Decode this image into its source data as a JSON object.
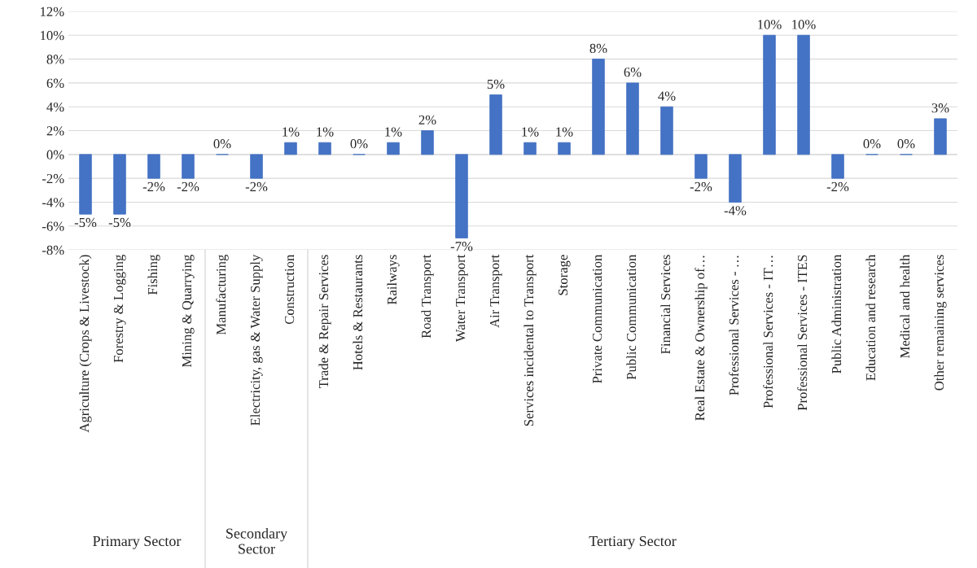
{
  "chart_data": {
    "type": "bar",
    "categories": [
      "Agriculture (Crops & Livestock)",
      "Forestry & Logging",
      "Fishing",
      "Mining & Quarrying",
      "Manufacturing",
      "Electricity, gas & Water Supply",
      "Construction",
      "Trade & Repair Services",
      "Hotels & Restaurants",
      "Railways",
      "Road Transport",
      "Water Transport",
      "Air Transport",
      "Services incidental to Transport",
      "Storage",
      "Private Communication",
      "Public Communication",
      "Financial Services",
      "Real Estate & Ownership of…",
      "Professional Services - …",
      "Professional Services - IT…",
      "Professional Services - ITES",
      "Public Administration",
      "Education and research",
      "Medical and health",
      "Other remaining services"
    ],
    "values": [
      -5,
      -5,
      -2,
      -2,
      0,
      -2,
      1,
      1,
      0,
      1,
      2,
      -7,
      5,
      1,
      1,
      8,
      6,
      4,
      -2,
      -4,
      10,
      10,
      -2,
      0,
      0,
      3
    ],
    "value_labels": [
      "-5%",
      "-5%",
      "-2%",
      "-2%",
      "0%",
      "-2%",
      "1%",
      "1%",
      "0%",
      "1%",
      "2%",
      "-7%",
      "5%",
      "1%",
      "1%",
      "8%",
      "6%",
      "4%",
      "-2%",
      "-4%",
      "10%",
      "10%",
      "-2%",
      "0%",
      "0%",
      "3%"
    ],
    "color": "#4472c4",
    "ylim": [
      -8,
      12
    ],
    "yticks": [
      {
        "value": -8,
        "label": "-8%"
      },
      {
        "value": -6,
        "label": "-6%"
      },
      {
        "value": -4,
        "label": "-4%"
      },
      {
        "value": -2,
        "label": "-2%"
      },
      {
        "value": 0,
        "label": "0%"
      },
      {
        "value": 2,
        "label": "2%"
      },
      {
        "value": 4,
        "label": "4%"
      },
      {
        "value": 6,
        "label": "6%"
      },
      {
        "value": 8,
        "label": "8%"
      },
      {
        "value": 10,
        "label": "10%"
      },
      {
        "value": 12,
        "label": "12%"
      }
    ],
    "grid": "y",
    "annotations": [
      "Primary Sector",
      "Secondary\nSector",
      "Tertiary Sector"
    ]
  }
}
